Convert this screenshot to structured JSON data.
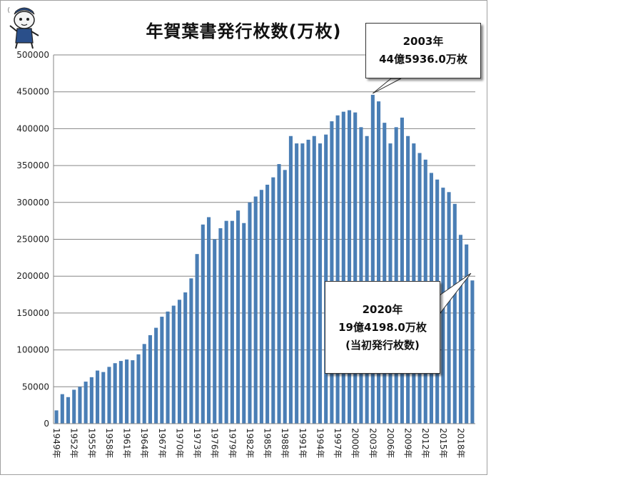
{
  "chart_data": {
    "type": "bar",
    "title": "年賀葉書発行枚数(万枚)",
    "xlabel": "",
    "ylabel": "",
    "ylim": [
      0,
      500000
    ],
    "y_ticks": [
      "0",
      "50000",
      "100000",
      "150000",
      "200000",
      "250000",
      "300000",
      "350000",
      "400000",
      "450000",
      "500000"
    ],
    "x_tick_labels": [
      "1949年",
      "1952年",
      "1955年",
      "1958年",
      "1961年",
      "1964年",
      "1967年",
      "1970年",
      "1973年",
      "1976年",
      "1979年",
      "1982年",
      "1985年",
      "1988年",
      "1991年",
      "1994年",
      "1997年",
      "2000年",
      "2003年",
      "2006年",
      "2009年",
      "2012年",
      "2015年",
      "2018年"
    ],
    "categories": [
      "1949年",
      "1950年",
      "1951年",
      "1952年",
      "1953年",
      "1954年",
      "1955年",
      "1956年",
      "1957年",
      "1958年",
      "1959年",
      "1960年",
      "1961年",
      "1962年",
      "1963年",
      "1964年",
      "1965年",
      "1966年",
      "1967年",
      "1968年",
      "1969年",
      "1970年",
      "1971年",
      "1972年",
      "1973年",
      "1974年",
      "1975年",
      "1976年",
      "1977年",
      "1978年",
      "1979年",
      "1980年",
      "1981年",
      "1982年",
      "1983年",
      "1984年",
      "1985年",
      "1986年",
      "1987年",
      "1988年",
      "1989年",
      "1990年",
      "1991年",
      "1992年",
      "1993年",
      "1994年",
      "1995年",
      "1996年",
      "1997年",
      "1998年",
      "1999年",
      "2000年",
      "2001年",
      "2002年",
      "2003年",
      "2004年",
      "2005年",
      "2006年",
      "2007年",
      "2008年",
      "2009年",
      "2010年",
      "2011年",
      "2012年",
      "2013年",
      "2014年",
      "2015年",
      "2016年",
      "2017年",
      "2018年",
      "2019年",
      "2020年"
    ],
    "values": [
      18000,
      40000,
      36000,
      46000,
      50000,
      57000,
      63000,
      72000,
      70000,
      77000,
      82000,
      85000,
      87000,
      86000,
      94000,
      108000,
      120000,
      130000,
      145000,
      152000,
      160000,
      168000,
      178000,
      197000,
      230000,
      270000,
      280000,
      250000,
      265000,
      275000,
      275000,
      289000,
      272000,
      300000,
      308000,
      317000,
      324000,
      334000,
      352000,
      344000,
      390000,
      380000,
      380000,
      385000,
      390000,
      380000,
      392000,
      410000,
      418000,
      423000,
      425000,
      422000,
      402000,
      390000,
      445936,
      437000,
      408000,
      380000,
      402000,
      415000,
      390000,
      380000,
      367000,
      358000,
      340000,
      331000,
      320000,
      314000,
      298000,
      256000,
      243000,
      194198
    ],
    "bar_color": "#4a7eb5",
    "annotations": [
      {
        "year": "2003年",
        "line1": "2003年",
        "line2": "44億5936.0万枚"
      },
      {
        "year": "2020年",
        "line1": "2020年",
        "line2": "19億4198.0万枚",
        "line3": "(当初発行枚数)"
      }
    ]
  }
}
